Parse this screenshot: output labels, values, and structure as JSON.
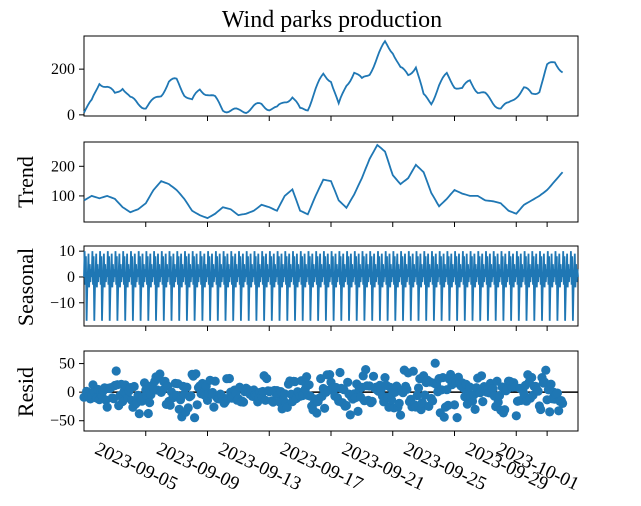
{
  "chart_data": {
    "type": "line",
    "title": "Wind parks production",
    "color": "#1f77b4",
    "x_start": "2023-09-01",
    "x_end": "2023-10-03",
    "x_tick_labels": [
      "2023-09-05",
      "2023-09-09",
      "2023-09-13",
      "2023-09-17",
      "2023-09-21",
      "2023-09-25",
      "2023-09-29",
      "2023-10-01"
    ],
    "subplots": [
      {
        "name": "observed",
        "ylabel": "",
        "style": "line",
        "ylim": [
          -5,
          345
        ],
        "yticks": [
          0,
          200
        ],
        "points": [
          [
            "2023-09-01",
            15
          ],
          [
            "2023-09-01 12:00",
            55
          ],
          [
            "2023-09-02",
            145
          ],
          [
            "2023-09-02 12:00",
            120
          ],
          [
            "2023-09-03",
            90
          ],
          [
            "2023-09-03 12:00",
            125
          ],
          [
            "2023-09-04",
            70
          ],
          [
            "2023-09-04 12:00",
            50
          ],
          [
            "2023-09-05",
            35
          ],
          [
            "2023-09-05 12:00",
            60
          ],
          [
            "2023-09-06",
            90
          ],
          [
            "2023-09-06 12:00",
            145
          ],
          [
            "2023-09-07",
            150
          ],
          [
            "2023-09-07 12:00",
            95
          ],
          [
            "2023-09-08",
            60
          ],
          [
            "2023-09-08 12:00",
            110
          ],
          [
            "2023-09-09",
            95
          ],
          [
            "2023-09-09 12:00",
            70
          ],
          [
            "2023-09-10",
            25
          ],
          [
            "2023-09-10 12:00",
            20
          ],
          [
            "2023-09-11",
            15
          ],
          [
            "2023-09-11 12:00",
            20
          ],
          [
            "2023-09-12",
            35
          ],
          [
            "2023-09-12 12:00",
            45
          ],
          [
            "2023-09-13",
            30
          ],
          [
            "2023-09-13 12:00",
            25
          ],
          [
            "2023-09-14",
            60
          ],
          [
            "2023-09-14 12:00",
            80
          ],
          [
            "2023-09-15",
            20
          ],
          [
            "2023-09-15 12:00",
            30
          ],
          [
            "2023-09-16",
            110
          ],
          [
            "2023-09-16 12:00",
            175
          ],
          [
            "2023-09-17",
            155
          ],
          [
            "2023-09-17 12:00",
            40
          ],
          [
            "2023-09-18",
            130
          ],
          [
            "2023-09-18 12:00",
            190
          ],
          [
            "2023-09-19",
            150
          ],
          [
            "2023-09-19 12:00",
            185
          ],
          [
            "2023-09-20",
            250
          ],
          [
            "2023-09-20 12:00",
            315
          ],
          [
            "2023-09-21",
            280
          ],
          [
            "2023-09-21 12:00",
            200
          ],
          [
            "2023-09-22",
            175
          ],
          [
            "2023-09-22 12:00",
            215
          ],
          [
            "2023-09-23",
            80
          ],
          [
            "2023-09-23 12:00",
            55
          ],
          [
            "2023-09-24",
            130
          ],
          [
            "2023-09-24 12:00",
            175
          ],
          [
            "2023-09-25",
            130
          ],
          [
            "2023-09-25 12:00",
            110
          ],
          [
            "2023-09-26",
            150
          ],
          [
            "2023-09-26 12:00",
            105
          ],
          [
            "2023-09-27",
            85
          ],
          [
            "2023-09-27 12:00",
            55
          ],
          [
            "2023-09-28",
            30
          ],
          [
            "2023-09-28 12:00",
            45
          ],
          [
            "2023-09-29",
            85
          ],
          [
            "2023-09-29 12:00",
            115
          ],
          [
            "2023-09-30",
            90
          ],
          [
            "2023-09-30 12:00",
            110
          ],
          [
            "2023-10-01",
            210
          ],
          [
            "2023-10-01 12:00",
            235
          ],
          [
            "2023-10-02",
            190
          ]
        ]
      },
      {
        "name": "trend",
        "ylabel": "Trend",
        "style": "line",
        "ylim": [
          12,
          282
        ],
        "yticks": [
          100,
          200
        ],
        "points": [
          [
            "2023-09-01",
            85
          ],
          [
            "2023-09-01 12:00",
            100
          ],
          [
            "2023-09-02",
            92
          ],
          [
            "2023-09-02 12:00",
            100
          ],
          [
            "2023-09-03",
            90
          ],
          [
            "2023-09-03 12:00",
            62
          ],
          [
            "2023-09-04",
            45
          ],
          [
            "2023-09-04 12:00",
            55
          ],
          [
            "2023-09-05",
            75
          ],
          [
            "2023-09-05 12:00",
            120
          ],
          [
            "2023-09-06",
            150
          ],
          [
            "2023-09-06 12:00",
            140
          ],
          [
            "2023-09-07",
            120
          ],
          [
            "2023-09-07 12:00",
            90
          ],
          [
            "2023-09-08",
            50
          ],
          [
            "2023-09-08 12:00",
            35
          ],
          [
            "2023-09-09",
            25
          ],
          [
            "2023-09-09 12:00",
            40
          ],
          [
            "2023-09-10",
            62
          ],
          [
            "2023-09-10 12:00",
            55
          ],
          [
            "2023-09-11",
            35
          ],
          [
            "2023-09-11 12:00",
            40
          ],
          [
            "2023-09-12",
            50
          ],
          [
            "2023-09-12 12:00",
            70
          ],
          [
            "2023-09-13",
            62
          ],
          [
            "2023-09-13 12:00",
            50
          ],
          [
            "2023-09-14",
            100
          ],
          [
            "2023-09-14 12:00",
            122
          ],
          [
            "2023-09-15",
            50
          ],
          [
            "2023-09-15 12:00",
            38
          ],
          [
            "2023-09-16",
            100
          ],
          [
            "2023-09-16 12:00",
            155
          ],
          [
            "2023-09-17",
            150
          ],
          [
            "2023-09-17 12:00",
            85
          ],
          [
            "2023-09-18",
            60
          ],
          [
            "2023-09-18 12:00",
            105
          ],
          [
            "2023-09-19",
            160
          ],
          [
            "2023-09-19 12:00",
            225
          ],
          [
            "2023-09-20",
            272
          ],
          [
            "2023-09-20 12:00",
            250
          ],
          [
            "2023-09-21",
            170
          ],
          [
            "2023-09-21 12:00",
            140
          ],
          [
            "2023-09-22",
            160
          ],
          [
            "2023-09-22 12:00",
            205
          ],
          [
            "2023-09-23",
            180
          ],
          [
            "2023-09-23 12:00",
            110
          ],
          [
            "2023-09-24",
            65
          ],
          [
            "2023-09-24 12:00",
            90
          ],
          [
            "2023-09-25",
            120
          ],
          [
            "2023-09-25 12:00",
            108
          ],
          [
            "2023-09-26",
            100
          ],
          [
            "2023-09-26 12:00",
            100
          ],
          [
            "2023-09-27",
            85
          ],
          [
            "2023-09-27 12:00",
            82
          ],
          [
            "2023-09-28",
            75
          ],
          [
            "2023-09-28 12:00",
            50
          ],
          [
            "2023-09-29",
            40
          ],
          [
            "2023-09-29 12:00",
            70
          ],
          [
            "2023-09-30",
            85
          ],
          [
            "2023-09-30 12:00",
            100
          ],
          [
            "2023-10-01",
            120
          ],
          [
            "2023-10-01 12:00",
            150
          ],
          [
            "2023-10-02",
            180
          ]
        ]
      },
      {
        "name": "seasonal",
        "ylabel": "Seasonal",
        "style": "line",
        "ylim": [
          -19,
          12
        ],
        "yticks": [
          -10,
          0,
          10
        ],
        "period_hours": 12,
        "values_per_period": [
          0,
          10,
          -3,
          8,
          -17,
          -5,
          2,
          9,
          -4,
          5,
          -2,
          3
        ]
      },
      {
        "name": "resid",
        "ylabel": "Resid",
        "style": "scatter",
        "ylim": [
          -68,
          72
        ],
        "yticks": [
          -50,
          0,
          50
        ],
        "zero_line": true,
        "amplitude_profile": [
          [
            "2023-09-01",
            40
          ],
          [
            "2023-09-06",
            50
          ],
          [
            "2023-09-08",
            65
          ],
          [
            "2023-09-11",
            25
          ],
          [
            "2023-09-14",
            45
          ],
          [
            "2023-09-18",
            55
          ],
          [
            "2023-09-21",
            60
          ],
          [
            "2023-09-24",
            65
          ],
          [
            "2023-09-27",
            40
          ],
          [
            "2023-09-29",
            55
          ],
          [
            "2023-10-01",
            50
          ],
          [
            "2023-10-02",
            55
          ]
        ]
      }
    ]
  }
}
